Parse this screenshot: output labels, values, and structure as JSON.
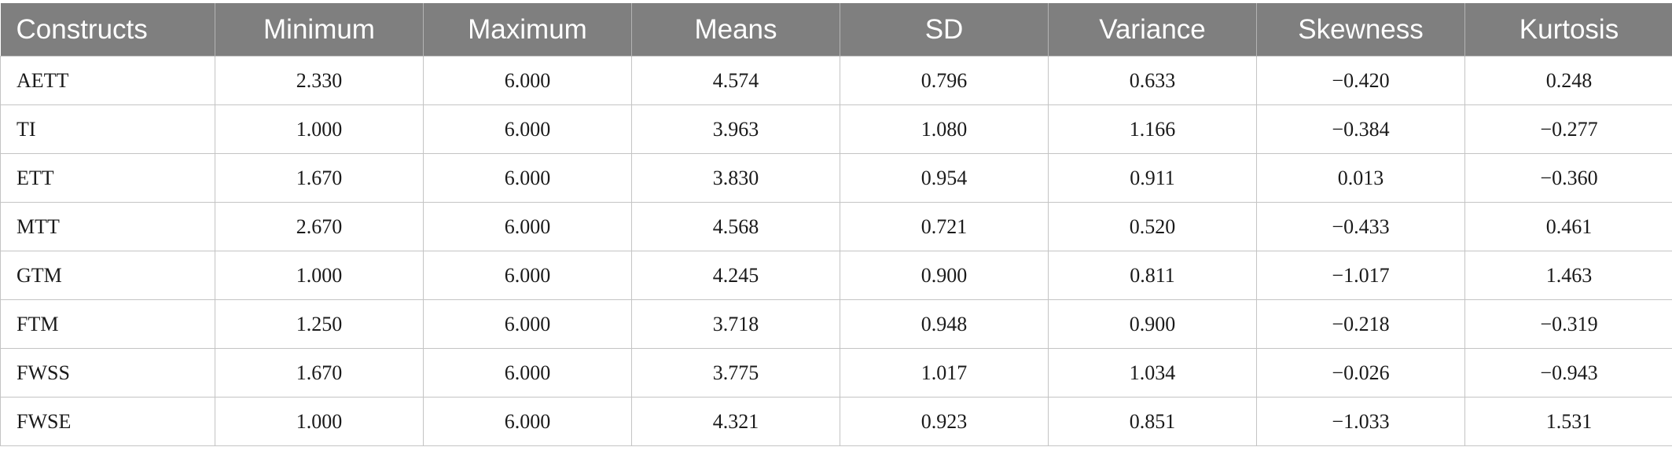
{
  "table": {
    "headers": [
      "Constructs",
      "Minimum",
      "Maximum",
      "Means",
      "SD",
      "Variance",
      "Skewness",
      "Kurtosis"
    ],
    "rows": [
      [
        "AETT",
        "2.330",
        "6.000",
        "4.574",
        "0.796",
        "0.633",
        "−0.420",
        "0.248"
      ],
      [
        "TI",
        "1.000",
        "6.000",
        "3.963",
        "1.080",
        "1.166",
        "−0.384",
        "−0.277"
      ],
      [
        "ETT",
        "1.670",
        "6.000",
        "3.830",
        "0.954",
        "0.911",
        "0.013",
        "−0.360"
      ],
      [
        "MTT",
        "2.670",
        "6.000",
        "4.568",
        "0.721",
        "0.520",
        "−0.433",
        "0.461"
      ],
      [
        "GTM",
        "1.000",
        "6.000",
        "4.245",
        "0.900",
        "0.811",
        "−1.017",
        "1.463"
      ],
      [
        "FTM",
        "1.250",
        "6.000",
        "3.718",
        "0.948",
        "0.900",
        "−0.218",
        "−0.319"
      ],
      [
        "FWSS",
        "1.670",
        "6.000",
        "3.775",
        "1.017",
        "1.034",
        "−0.026",
        "−0.943"
      ],
      [
        "FWSE",
        "1.000",
        "6.000",
        "4.321",
        "0.923",
        "0.851",
        "−1.033",
        "1.531"
      ]
    ]
  }
}
